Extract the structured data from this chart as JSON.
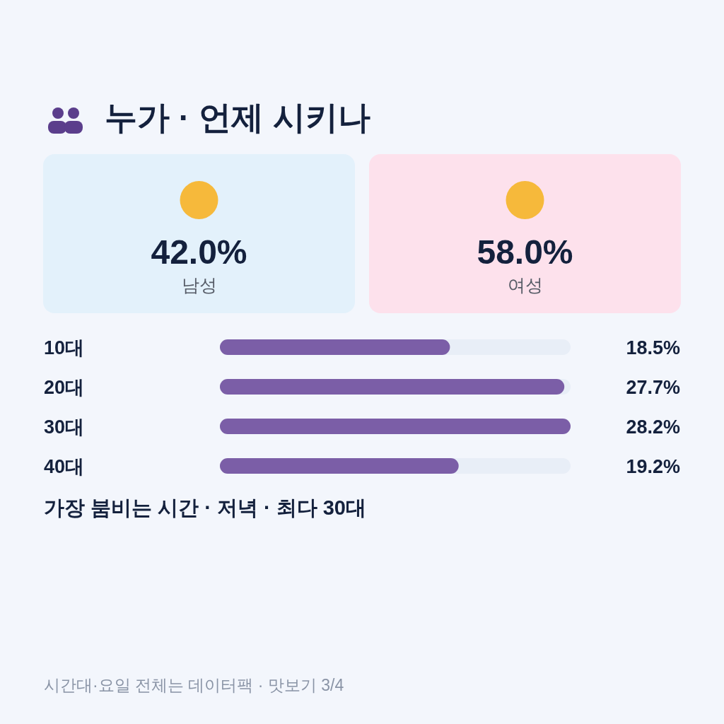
{
  "chart_data": [
    {
      "type": "other",
      "title": "누가 · 언제 시키나",
      "categories": [
        "남성",
        "여성"
      ],
      "values": [
        42.0,
        58.0
      ],
      "value_labels": [
        "42.0%",
        "58.0%"
      ],
      "colors": [
        "#e3f1fb",
        "#fde1ec"
      ]
    },
    {
      "type": "bar",
      "orientation": "horizontal",
      "categories": [
        "10대",
        "20대",
        "30대",
        "40대"
      ],
      "values": [
        18.5,
        27.7,
        28.2,
        19.2
      ],
      "value_labels": [
        "18.5%",
        "27.7%",
        "28.2%",
        "19.2%"
      ],
      "color": "#7b5ea7",
      "annotations": [
        "가장 붐비는 시간 · 저녁 · 최다 30대",
        "시간대·요일 전체는 데이터팩 · 맛보기 3/4"
      ]
    }
  ]
}
